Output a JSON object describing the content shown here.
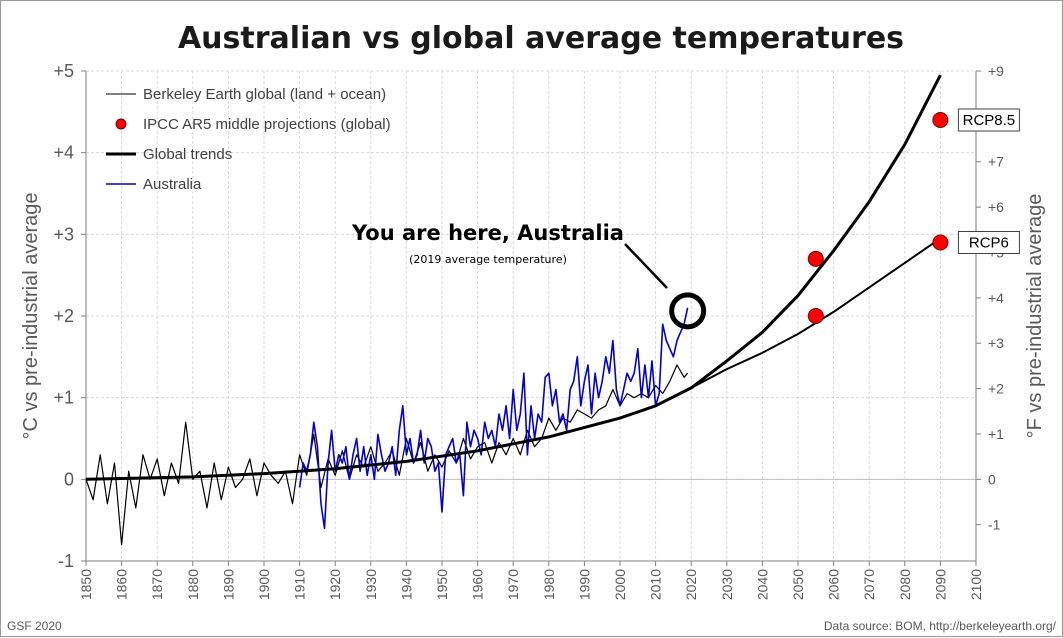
{
  "chart_data": {
    "type": "line",
    "title": "Australian vs global average temperatures",
    "ylabel_left": "°C vs pre-industrial average",
    "ylabel_right": "°F vs pre-industrial average",
    "xlim": [
      1850,
      2100
    ],
    "ylim_c": [
      -1,
      5
    ],
    "ylim_f": [
      -1.8,
      9
    ],
    "x_ticks": [
      "1850",
      "1860",
      "1870",
      "1880",
      "1890",
      "1900",
      "1910",
      "1920",
      "1930",
      "1940",
      "1950",
      "1960",
      "1970",
      "1980",
      "1990",
      "2000",
      "2010",
      "2020",
      "2030",
      "2040",
      "2050",
      "2060",
      "2070",
      "2080",
      "2090",
      "2100"
    ],
    "y_ticks_left": [
      {
        "v": -1,
        "label": "-1"
      },
      {
        "v": 0,
        "label": "0"
      },
      {
        "v": 1,
        "label": "+1"
      },
      {
        "v": 2,
        "label": "+2"
      },
      {
        "v": 3,
        "label": "+3"
      },
      {
        "v": 4,
        "label": "+4"
      },
      {
        "v": 5,
        "label": "+5"
      }
    ],
    "y_ticks_right": [
      {
        "v": -1,
        "label": "-1"
      },
      {
        "v": 0,
        "label": "0"
      },
      {
        "v": 1,
        "label": "+1"
      },
      {
        "v": 2,
        "label": "+2"
      },
      {
        "v": 3,
        "label": "+3"
      },
      {
        "v": 4,
        "label": "+4"
      },
      {
        "v": 5,
        "label": "+5"
      },
      {
        "v": 6,
        "label": "+6"
      },
      {
        "v": 7,
        "label": "+7"
      },
      {
        "v": 8,
        "label": "+8"
      },
      {
        "v": 9,
        "label": "+9"
      }
    ],
    "legend": [
      {
        "key": "global",
        "label": "Berkeley Earth global (land + ocean)"
      },
      {
        "key": "ipcc",
        "label": "IPCC AR5 middle projections (global)"
      },
      {
        "key": "trend",
        "label": "Global trends"
      },
      {
        "key": "aus",
        "label": "Australia"
      }
    ],
    "colors": {
      "global": "#000000",
      "ipcc": "#ff0000",
      "trend": "#000000",
      "aus": "#0000dd"
    },
    "series": [
      {
        "name": "Berkeley Earth global (land + ocean)",
        "x": [
          1850,
          1852,
          1854,
          1856,
          1858,
          1860,
          1862,
          1864,
          1866,
          1868,
          1870,
          1872,
          1874,
          1876,
          1878,
          1880,
          1882,
          1884,
          1886,
          1888,
          1890,
          1892,
          1894,
          1896,
          1898,
          1900,
          1902,
          1904,
          1906,
          1908,
          1910,
          1912,
          1914,
          1916,
          1918,
          1920,
          1922,
          1924,
          1926,
          1928,
          1930,
          1932,
          1934,
          1936,
          1938,
          1940,
          1942,
          1944,
          1946,
          1948,
          1950,
          1952,
          1954,
          1956,
          1958,
          1960,
          1962,
          1964,
          1966,
          1968,
          1970,
          1972,
          1974,
          1976,
          1978,
          1980,
          1982,
          1984,
          1986,
          1988,
          1990,
          1992,
          1994,
          1996,
          1998,
          2000,
          2002,
          2004,
          2006,
          2008,
          2010,
          2012,
          2014,
          2016,
          2018,
          2019
        ],
        "values": [
          0.0,
          -0.25,
          0.3,
          -0.3,
          0.2,
          -0.8,
          0.1,
          -0.35,
          0.3,
          0.0,
          0.25,
          -0.2,
          0.2,
          -0.05,
          0.7,
          0.0,
          0.1,
          -0.35,
          0.2,
          -0.25,
          0.15,
          -0.1,
          0.0,
          0.25,
          -0.2,
          0.2,
          0.05,
          -0.05,
          0.1,
          -0.3,
          0.3,
          0.05,
          0.55,
          -0.1,
          0.25,
          0.05,
          0.35,
          0.0,
          0.3,
          0.15,
          0.4,
          0.1,
          0.2,
          0.35,
          0.05,
          0.5,
          0.2,
          0.45,
          0.1,
          0.3,
          0.15,
          0.35,
          0.2,
          0.5,
          0.25,
          0.4,
          0.45,
          0.2,
          0.45,
          0.3,
          0.5,
          0.3,
          0.6,
          0.4,
          0.5,
          0.75,
          0.6,
          0.75,
          0.7,
          0.85,
          0.8,
          0.75,
          0.85,
          0.9,
          1.1,
          0.9,
          1.05,
          1.0,
          1.05,
          1.0,
          1.15,
          1.05,
          1.2,
          1.4,
          1.25,
          1.3
        ]
      },
      {
        "name": "Australia",
        "x": [
          1910,
          1911,
          1912,
          1913,
          1914,
          1915,
          1916,
          1917,
          1918,
          1919,
          1920,
          1921,
          1922,
          1923,
          1924,
          1925,
          1926,
          1927,
          1928,
          1929,
          1930,
          1931,
          1932,
          1933,
          1934,
          1935,
          1936,
          1937,
          1938,
          1939,
          1940,
          1941,
          1942,
          1943,
          1944,
          1945,
          1946,
          1947,
          1948,
          1949,
          1950,
          1951,
          1952,
          1953,
          1954,
          1955,
          1956,
          1957,
          1958,
          1959,
          1960,
          1961,
          1962,
          1963,
          1964,
          1965,
          1966,
          1967,
          1968,
          1969,
          1970,
          1971,
          1972,
          1973,
          1974,
          1975,
          1976,
          1977,
          1978,
          1979,
          1980,
          1981,
          1982,
          1983,
          1984,
          1985,
          1986,
          1987,
          1988,
          1989,
          1990,
          1991,
          1992,
          1993,
          1994,
          1995,
          1996,
          1997,
          1998,
          1999,
          2000,
          2001,
          2002,
          2003,
          2004,
          2005,
          2006,
          2007,
          2008,
          2009,
          2010,
          2011,
          2012,
          2013,
          2014,
          2015,
          2016,
          2017,
          2018,
          2019
        ],
        "values": [
          -0.1,
          0.2,
          0.1,
          0.3,
          0.7,
          0.4,
          -0.3,
          -0.6,
          0.2,
          0.6,
          0.1,
          0.3,
          0.2,
          0.4,
          0.0,
          0.3,
          0.5,
          0.1,
          0.4,
          0.05,
          0.3,
          0.0,
          0.55,
          0.3,
          0.1,
          0.2,
          0.4,
          0.05,
          0.6,
          0.9,
          0.3,
          0.5,
          0.2,
          0.3,
          0.6,
          0.2,
          0.5,
          0.4,
          0.1,
          0.2,
          -0.4,
          0.3,
          0.4,
          0.5,
          0.2,
          0.3,
          -0.2,
          0.7,
          0.4,
          0.6,
          0.5,
          0.3,
          0.7,
          0.5,
          0.6,
          0.4,
          0.8,
          0.6,
          0.9,
          0.5,
          1.1,
          0.6,
          0.8,
          1.3,
          0.3,
          0.9,
          0.5,
          0.8,
          0.7,
          1.25,
          1.3,
          0.9,
          1.1,
          0.7,
          0.8,
          0.6,
          1.1,
          1.2,
          1.5,
          0.9,
          1.2,
          1.4,
          0.8,
          1.3,
          1.0,
          1.2,
          1.5,
          1.3,
          1.7,
          1.1,
          0.9,
          1.1,
          1.3,
          1.2,
          1.3,
          1.6,
          1.0,
          1.4,
          1.0,
          1.45,
          0.9,
          1.05,
          1.9,
          1.7,
          1.6,
          1.5,
          1.7,
          1.8,
          1.9,
          2.1
        ]
      },
      {
        "name": "Global trend RCP8.5",
        "x": [
          1850,
          1880,
          1900,
          1920,
          1940,
          1960,
          1980,
          2000,
          2010,
          2020,
          2030,
          2040,
          2050,
          2060,
          2070,
          2080,
          2090
        ],
        "values": [
          0.0,
          0.03,
          0.07,
          0.13,
          0.22,
          0.35,
          0.52,
          0.75,
          0.9,
          1.12,
          1.45,
          1.8,
          2.25,
          2.8,
          3.4,
          4.1,
          4.95
        ]
      },
      {
        "name": "Global trend RCP6",
        "x": [
          2020,
          2030,
          2040,
          2050,
          2060,
          2070,
          2080,
          2090
        ],
        "values": [
          1.12,
          1.35,
          1.55,
          1.78,
          2.05,
          2.35,
          2.65,
          2.95
        ]
      }
    ],
    "ipcc_points": [
      {
        "x": 2055,
        "y": 2.7
      },
      {
        "x": 2055,
        "y": 2.0
      },
      {
        "x": 2090,
        "y": 4.4,
        "label": "RCP8.5"
      },
      {
        "x": 2090,
        "y": 2.9,
        "label": "RCP6"
      }
    ],
    "annotation": {
      "headline": "You are here, Australia",
      "subline": "(2019 average temperature)",
      "target_x": 2019,
      "target_y": 2.1
    }
  },
  "footer": {
    "left": "GSF 2020",
    "right": "Data source: BOM, http://berkeleyearth.org/"
  }
}
